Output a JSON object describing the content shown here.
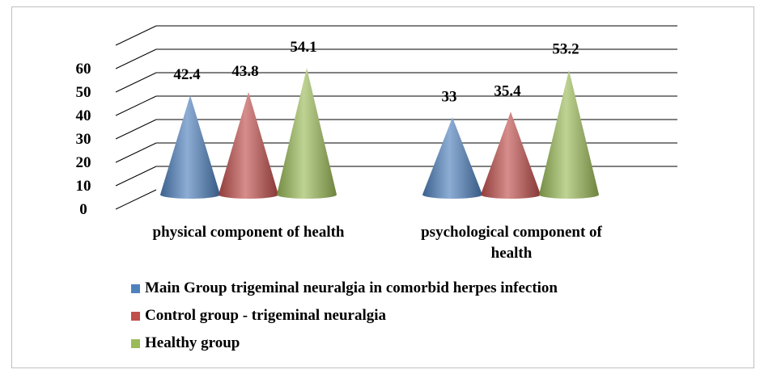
{
  "chart_data": {
    "type": "bar",
    "categories": [
      "physical component of health",
      "psychological component of health"
    ],
    "series": [
      {
        "name": "Main Group trigeminal neuralgia in comorbid herpes infection",
        "values": [
          42.4,
          33
        ],
        "color": "#4f81bd"
      },
      {
        "name": "Control group - trigeminal neuralgia",
        "values": [
          43.8,
          35.4
        ],
        "color": "#c0504d"
      },
      {
        "name": "Healthy group",
        "values": [
          54.1,
          53.2
        ],
        "color": "#9bbb59"
      }
    ],
    "ylim": [
      0,
      60
    ],
    "yticks": [
      "0",
      "10",
      "20",
      "30",
      "40",
      "50",
      "60"
    ],
    "data_labels": [
      [
        "42.4",
        "33"
      ],
      [
        "43.8",
        "35.4"
      ],
      [
        "54.1",
        "53.2"
      ]
    ],
    "grid": true,
    "legend_position": "bottom",
    "bar_shape": "cone"
  }
}
